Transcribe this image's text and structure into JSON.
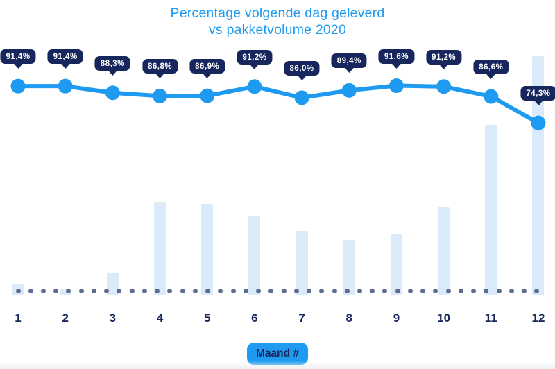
{
  "title": {
    "line1": "Percentage volgende dag geleverd",
    "line2": "vs pakketvolume 2020"
  },
  "x_axis_badge": "Maand #",
  "colors": {
    "accent_blue": "#1E9BF0",
    "navy": "#17265C",
    "bar_fill": "#DBEAF9",
    "baseline_dot": "#5D6D92",
    "callout_text": "#FFFFFF",
    "background": "#FFFFFF"
  },
  "chart_data": {
    "type": "combo",
    "title": "Percentage volgende dag geleverd vs pakketvolume 2020",
    "categories": [
      "1",
      "2",
      "3",
      "4",
      "5",
      "6",
      "7",
      "8",
      "9",
      "10",
      "11",
      "12"
    ],
    "xlabel": "Maand #",
    "legend_position": "none",
    "grid": "dotted-baseline-only",
    "series": [
      {
        "name": "Percentage volgende dag geleverd",
        "type": "line",
        "unit": "%",
        "values": [
          91.4,
          91.4,
          88.3,
          86.8,
          86.9,
          91.2,
          86.0,
          89.4,
          91.6,
          91.2,
          86.6,
          74.3
        ],
        "labels": [
          "91,4%",
          "91,4%",
          "88,3%",
          "86,8%",
          "86,9%",
          "91,2%",
          "86,0%",
          "89,4%",
          "91,6%",
          "91,2%",
          "86,6%",
          "74,3%"
        ],
        "ylim": [
          72,
          94
        ]
      },
      {
        "name": "Pakketvolume 2020",
        "type": "bar",
        "unit": "relative, no axis shown",
        "values": [
          4.7,
          2.6,
          9.3,
          39.0,
          38.0,
          33.1,
          26.7,
          23.0,
          25.6,
          36.6,
          71.2,
          100.0
        ],
        "ylim": [
          0,
          100
        ]
      }
    ]
  }
}
